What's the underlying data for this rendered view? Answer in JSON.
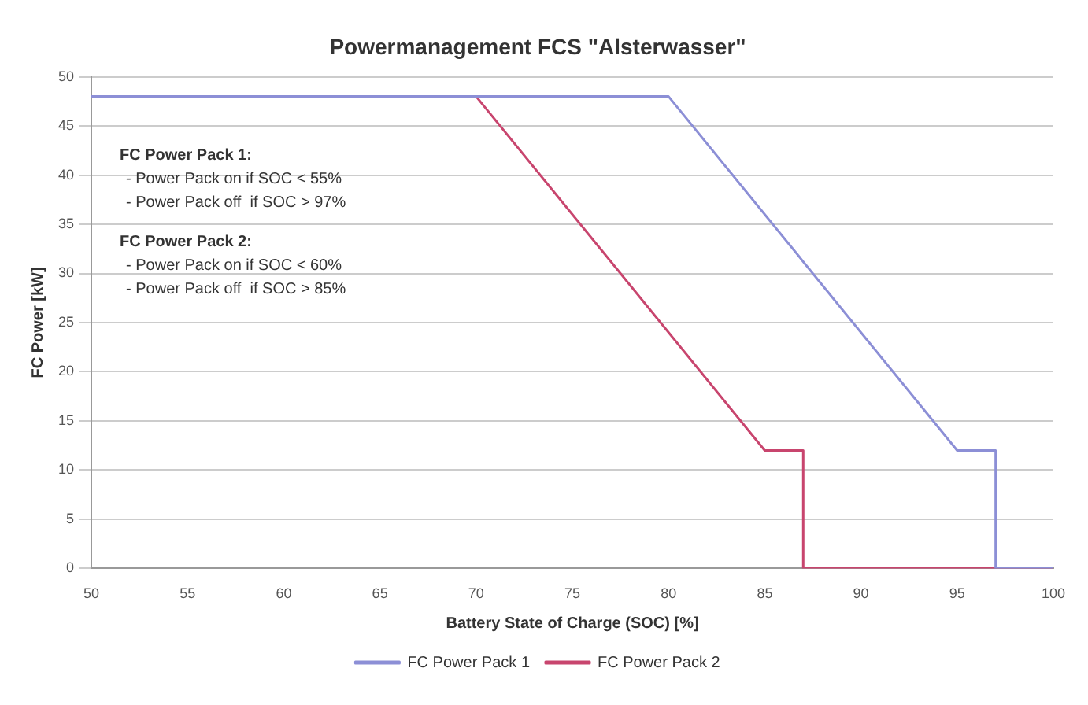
{
  "chart_data": {
    "type": "line",
    "title": "Powermanagement FCS \"Alsterwasser\"",
    "xlabel": "Battery State of Charge (SOC) [%]",
    "ylabel": "FC Power [kW]",
    "series": [
      {
        "name": "FC Power Pack 1",
        "color": "#8c8fd6",
        "x": [
          50,
          80,
          95,
          97,
          97,
          100
        ],
        "values": [
          48,
          48,
          12,
          12,
          0,
          0
        ]
      },
      {
        "name": "FC Power Pack 2",
        "color": "#c8456e",
        "x": [
          50,
          70,
          85,
          87,
          87,
          100
        ],
        "values": [
          48,
          48,
          12,
          12,
          0,
          0
        ]
      }
    ],
    "xlim": [
      50,
      100
    ],
    "xticks": [
      50,
      55,
      60,
      65,
      70,
      75,
      80,
      85,
      90,
      95,
      100
    ],
    "ylim": [
      0,
      50
    ],
    "yticks": [
      0,
      5,
      10,
      15,
      20,
      25,
      30,
      35,
      40,
      45,
      50
    ],
    "grid": "y",
    "legend": "bottom",
    "marker": "none",
    "line_style": "solid",
    "annotations": [
      "FC Power Pack 1:",
      "- Power Pack on if SOC < 55%",
      "- Power Pack off  if SOC > 97%",
      "FC Power Pack 2:",
      "- Power Pack on if SOC < 60%",
      "- Power Pack off  if SOC > 85%"
    ]
  }
}
